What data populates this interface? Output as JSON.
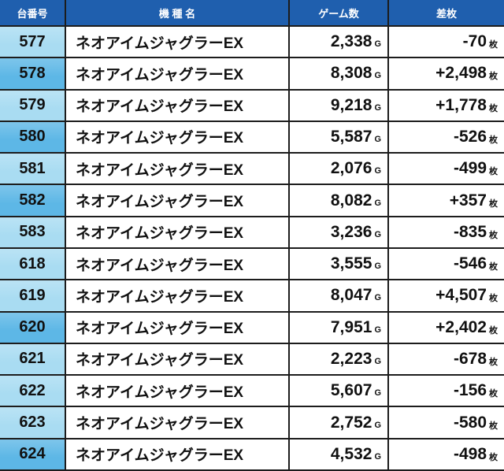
{
  "table": {
    "header": [
      "台番号",
      "機 種 名",
      "ゲーム数",
      "差枚"
    ],
    "units": {
      "games": "G",
      "diff": "枚"
    },
    "rows": [
      [
        "577",
        "ネオアイムジャグラーEX",
        "2,338",
        "-70",
        "#a9dcf2"
      ],
      [
        "578",
        "ネオアイムジャグラーEX",
        "8,308",
        "+2,498",
        "#5db7e6"
      ],
      [
        "579",
        "ネオアイムジャグラーEX",
        "9,218",
        "+1,778",
        "#a9dcf2"
      ],
      [
        "580",
        "ネオアイムジャグラーEX",
        "5,587",
        "-526",
        "#5db7e6"
      ],
      [
        "581",
        "ネオアイムジャグラーEX",
        "2,076",
        "-499",
        "#a9dcf2"
      ],
      [
        "582",
        "ネオアイムジャグラーEX",
        "8,082",
        "+357",
        "#5db7e6"
      ],
      [
        "583",
        "ネオアイムジャグラーEX",
        "3,236",
        "-835",
        "#a9dcf2"
      ],
      [
        "618",
        "ネオアイムジャグラーEX",
        "3,555",
        "-546",
        "#a9dcf2"
      ],
      [
        "619",
        "ネオアイムジャグラーEX",
        "8,047",
        "+4,507",
        "#a9dcf2"
      ],
      [
        "620",
        "ネオアイムジャグラーEX",
        "7,951",
        "+2,402",
        "#5db7e6"
      ],
      [
        "621",
        "ネオアイムジャグラーEX",
        "2,223",
        "-678",
        "#a9dcf2"
      ],
      [
        "622",
        "ネオアイムジャグラーEX",
        "5,607",
        "-156",
        "#a9dcf2"
      ],
      [
        "623",
        "ネオアイムジャグラーEX",
        "2,752",
        "-580",
        "#a9dcf2"
      ],
      [
        "624",
        "ネオアイムジャグラーEX",
        "4,532",
        "-498",
        "#5db7e6"
      ]
    ]
  }
}
